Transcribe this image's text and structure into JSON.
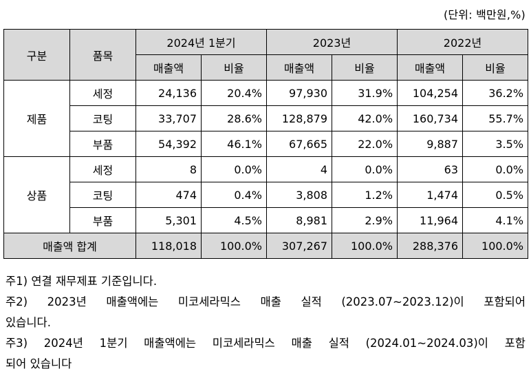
{
  "unit_note": "(단위: 백만원,%)",
  "header": {
    "division": "구분",
    "item": "품목",
    "periods": [
      "2024년 1분기",
      "2023년",
      "2022년"
    ],
    "sales": "매출액",
    "ratio": "비율"
  },
  "groups": [
    {
      "name": "제품",
      "rows": [
        {
          "item": "세정",
          "v": [
            "24,136",
            "20.4%",
            "97,930",
            "31.9%",
            "104,254",
            "36.2%"
          ]
        },
        {
          "item": "코팅",
          "v": [
            "33,707",
            "28.6%",
            "128,879",
            "42.0%",
            "160,734",
            "55.7%"
          ]
        },
        {
          "item": "부품",
          "v": [
            "54,392",
            "46.1%",
            "67,665",
            "22.0%",
            "9,887",
            "3.5%"
          ]
        }
      ]
    },
    {
      "name": "상품",
      "rows": [
        {
          "item": "세정",
          "v": [
            "8",
            "0.0%",
            "4",
            "0.0%",
            "63",
            "0.0%"
          ]
        },
        {
          "item": "코팅",
          "v": [
            "474",
            "0.4%",
            "3,808",
            "1.2%",
            "1,474",
            "0.5%"
          ]
        },
        {
          "item": "부품",
          "v": [
            "5,301",
            "4.5%",
            "8,981",
            "2.9%",
            "11,964",
            "4.1%"
          ]
        }
      ]
    }
  ],
  "total": {
    "label": "매출액 합계",
    "v": [
      "118,018",
      "100.0%",
      "307,267",
      "100.0%",
      "288,376",
      "100.0%"
    ]
  },
  "notes": {
    "n1": "주1) 연결 재무제표 기준입니다.",
    "n2a": "주2) 2023년 매출액에는 미코세라믹스 매출 실적 (2023.07~2023.12)이 포함되어",
    "n2b": "있습니다.",
    "n3a": "주3) 2024년 1분기 매출액에는 미코세라믹스 매출 실적 (2024.01~2024.03)이 포함",
    "n3b": "되어 있습니다"
  }
}
